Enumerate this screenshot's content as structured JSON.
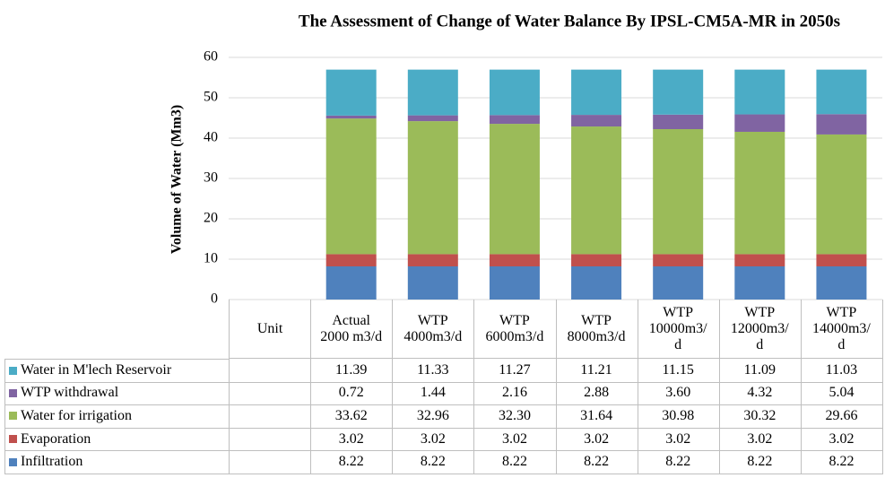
{
  "chart_data": {
    "type": "stacked_bar",
    "title": "The Assessment of Change of Water Balance By IPSL-CM5A-MR in 2050s",
    "y_label": "Volume of Water (Mm3)",
    "categories": [
      "Unit",
      "Actual\n2000 m3/d",
      "WTP\n4000m3/d",
      "WTP\n6000m3/d",
      "WTP\n8000m3/d",
      "WTP\n10000m3/\nd",
      "WTP\n12000m3/\nd",
      "WTP\n14000m3/\nd"
    ],
    "series": [
      {
        "name": "Infiltration",
        "color": "#4f81bd",
        "values": [
          null,
          8.22,
          8.22,
          8.22,
          8.22,
          8.22,
          8.22,
          8.22
        ],
        "value_labels": [
          null,
          "8.22",
          "8.22",
          "8.22",
          "8.22",
          "8.22",
          "8.22",
          "8.22"
        ]
      },
      {
        "name": "Evaporation",
        "color": "#c0504d",
        "values": [
          null,
          3.02,
          3.02,
          3.02,
          3.02,
          3.02,
          3.02,
          3.02
        ],
        "value_labels": [
          null,
          "3.02",
          "3.02",
          "3.02",
          "3.02",
          "3.02",
          "3.02",
          "3.02"
        ]
      },
      {
        "name": "Water for irrigation",
        "color": "#9bbb59",
        "values": [
          null,
          33.62,
          32.96,
          32.3,
          31.64,
          30.98,
          30.32,
          29.66
        ],
        "value_labels": [
          null,
          "33.62",
          "32.96",
          "32.30",
          "31.64",
          "30.98",
          "30.32",
          "29.66"
        ]
      },
      {
        "name": "WTP withdrawal",
        "color": "#8064a2",
        "values": [
          null,
          0.72,
          1.44,
          2.16,
          2.88,
          3.6,
          4.32,
          5.04
        ],
        "value_labels": [
          null,
          "0.72",
          "1.44",
          "2.16",
          "2.88",
          "3.60",
          "4.32",
          "5.04"
        ]
      },
      {
        "name": "Water in M'lech Reservoir",
        "color": "#4bacc6",
        "values": [
          null,
          11.39,
          11.33,
          11.27,
          11.21,
          11.15,
          11.09,
          11.03
        ],
        "value_labels": [
          null,
          "11.39",
          "11.33",
          "11.27",
          "11.21",
          "11.15",
          "11.09",
          "11.03"
        ]
      }
    ],
    "ylim": [
      0,
      60
    ],
    "yticks": [
      0,
      10,
      20,
      30,
      40,
      50,
      60
    ],
    "grid": true
  }
}
